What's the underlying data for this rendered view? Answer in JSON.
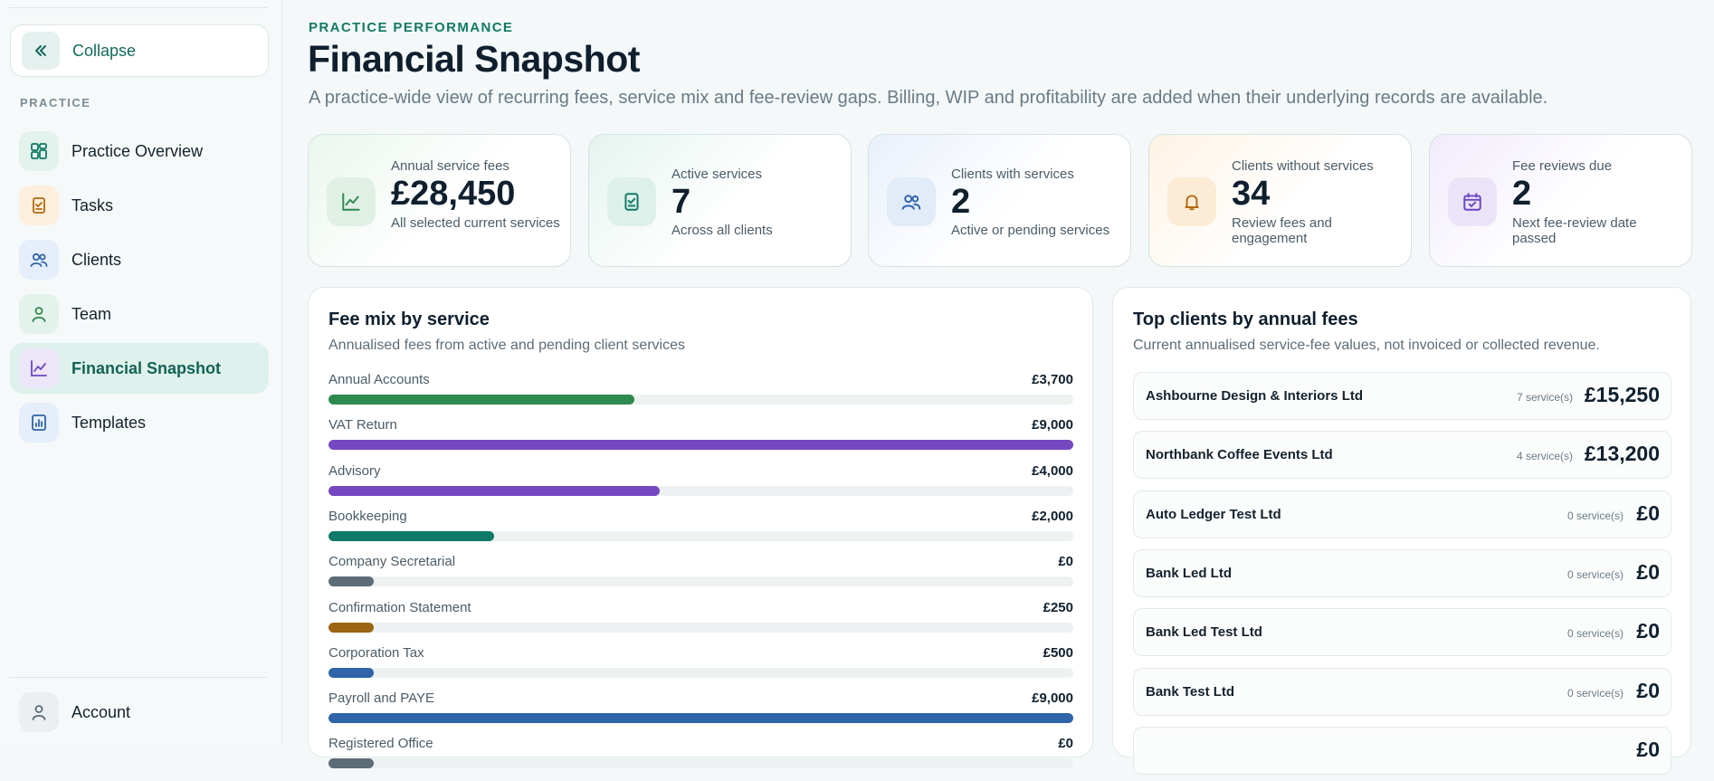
{
  "sidebar": {
    "collapse_label": "Collapse",
    "section_label": "PRACTICE",
    "items": [
      {
        "label": "Practice Overview",
        "icon": "grid-icon"
      },
      {
        "label": "Tasks",
        "icon": "clipboard-icon"
      },
      {
        "label": "Clients",
        "icon": "users-icon"
      },
      {
        "label": "Team",
        "icon": "user-icon"
      },
      {
        "label": "Financial Snapshot",
        "icon": "chart-line-icon",
        "active": true
      },
      {
        "label": "Templates",
        "icon": "report-icon"
      }
    ],
    "account_label": "Account"
  },
  "header": {
    "eyebrow": "PRACTICE PERFORMANCE",
    "title": "Financial Snapshot",
    "subtitle": "A practice-wide view of recurring fees, service mix and fee-review gaps. Billing, WIP and profitability are added when their underlying records are available."
  },
  "stats": [
    {
      "label": "Annual service fees",
      "value": "£28,450",
      "note": "All selected current services",
      "icon": "chart-line-icon",
      "color": "#2f8a4f"
    },
    {
      "label": "Active services",
      "value": "7",
      "note": "Across all clients",
      "icon": "clipboard-check-icon",
      "color": "#127a66"
    },
    {
      "label": "Clients with services",
      "value": "2",
      "note": "Active or pending services",
      "icon": "users-icon",
      "color": "#2f64a8"
    },
    {
      "label": "Clients without services",
      "value": "34",
      "note": "Review fees and engagement",
      "icon": "bell-icon",
      "color": "#b36b12"
    },
    {
      "label": "Fee reviews due",
      "value": "2",
      "note": "Next fee-review date passed",
      "icon": "calendar-check-icon",
      "color": "#6b46c1"
    }
  ],
  "fee_mix": {
    "title": "Fee mix by service",
    "subtitle": "Annualised fees from active and pending client services",
    "max": 9000,
    "rows": [
      {
        "name": "Annual Accounts",
        "amount": "£3,700",
        "value": 3700,
        "color": "#2f8a4f"
      },
      {
        "name": "VAT Return",
        "amount": "£9,000",
        "value": 9000,
        "color": "#7548c0"
      },
      {
        "name": "Advisory",
        "amount": "£4,000",
        "value": 4000,
        "color": "#7548c0"
      },
      {
        "name": "Bookkeeping",
        "amount": "£2,000",
        "value": 2000,
        "color": "#0f7a66"
      },
      {
        "name": "Company Secretarial",
        "amount": "£0",
        "value": 0,
        "color": "#5d6d78"
      },
      {
        "name": "Confirmation Statement",
        "amount": "£250",
        "value": 250,
        "color": "#9c6512"
      },
      {
        "name": "Corporation Tax",
        "amount": "£500",
        "value": 500,
        "color": "#2f64a8"
      },
      {
        "name": "Payroll and PAYE",
        "amount": "£9,000",
        "value": 9000,
        "color": "#2f64a8"
      },
      {
        "name": "Registered Office",
        "amount": "£0",
        "value": 0,
        "color": "#5d6d78"
      }
    ]
  },
  "top_clients": {
    "title": "Top clients by annual fees",
    "subtitle": "Current annualised service-fee values, not invoiced or collected revenue.",
    "rows": [
      {
        "name": "Ashbourne Design & Interiors Ltd",
        "services": "7 service(s)",
        "fee": "£15,250"
      },
      {
        "name": "Northbank Coffee Events Ltd",
        "services": "4 service(s)",
        "fee": "£13,200"
      },
      {
        "name": "Auto Ledger Test Ltd",
        "services": "0 service(s)",
        "fee": "£0"
      },
      {
        "name": "Bank Led Ltd",
        "services": "0 service(s)",
        "fee": "£0"
      },
      {
        "name": "Bank Led Test Ltd",
        "services": "0 service(s)",
        "fee": "£0"
      },
      {
        "name": "Bank Test Ltd",
        "services": "0 service(s)",
        "fee": "£0"
      },
      {
        "name": "",
        "services": "",
        "fee": "£0"
      }
    ]
  }
}
